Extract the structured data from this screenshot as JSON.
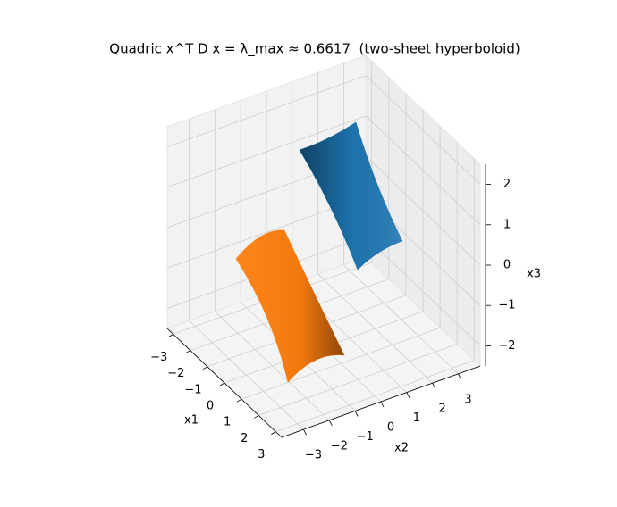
{
  "chart_data": {
    "type": "surface3d",
    "title": "Quadric x^T D x = λ_max ≈ 0.6617  (two-sheet hyperboloid)",
    "xlabel": "x1",
    "ylabel": "x2",
    "zlabel": "x3",
    "xlim": [
      -3.35,
      3.35
    ],
    "ylim": [
      -3.85,
      3.85
    ],
    "zlim": [
      -2.5,
      2.5
    ],
    "xticks": [
      {
        "value": -3,
        "label": "−3"
      },
      {
        "value": -2,
        "label": "−2"
      },
      {
        "value": -1,
        "label": "−1"
      },
      0,
      1,
      2,
      3
    ],
    "yticks": [
      {
        "value": -3,
        "label": "−3"
      },
      {
        "value": -2,
        "label": "−2"
      },
      {
        "value": -1,
        "label": "−1"
      },
      0,
      1,
      2,
      3
    ],
    "zticks": [
      {
        "value": -2,
        "label": "−2"
      },
      {
        "value": -1,
        "label": "−1"
      },
      0,
      1,
      2
    ],
    "grid": true,
    "series": [
      {
        "color": "#1f77b4"
      },
      {
        "color": "#ff7f0e"
      }
    ]
  }
}
